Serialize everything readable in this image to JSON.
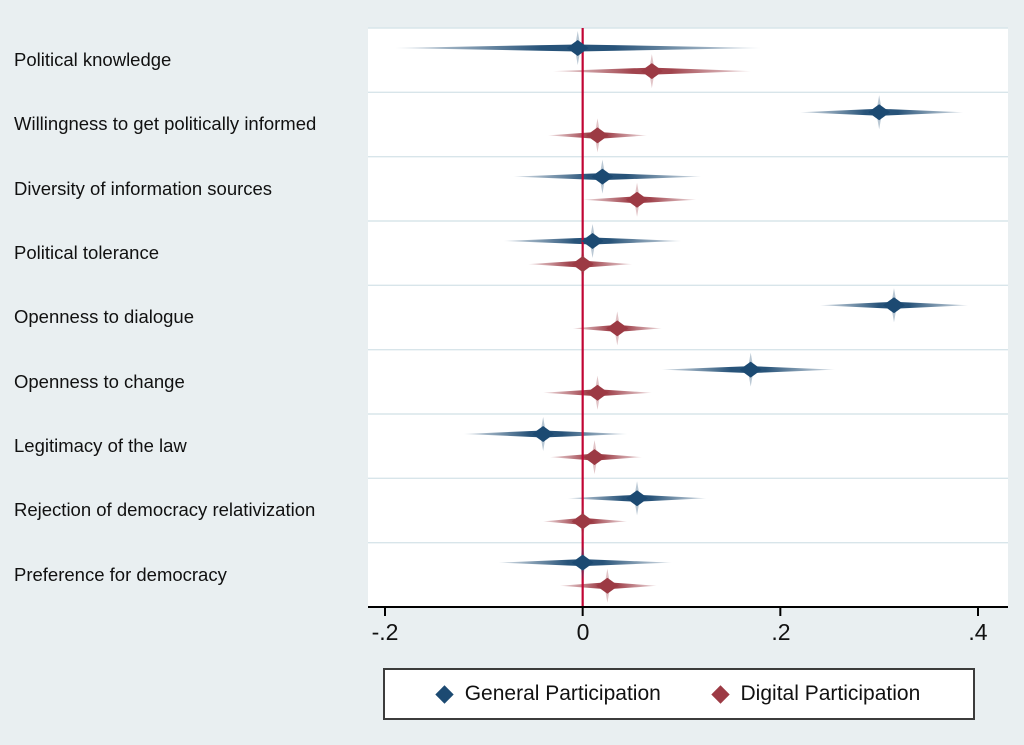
{
  "figure": {
    "background_color": "#e9eff1",
    "plot_background": "#ffffff",
    "gridline_color": "#d8e5ea",
    "axis_color": "#000000",
    "zero_line_color": "#c10534"
  },
  "legend": {
    "items": [
      {
        "label": "General Participation",
        "color": "#1c4a72",
        "marker": "diamond-icon"
      },
      {
        "label": "Digital Participation",
        "color": "#9c3a44",
        "marker": "diamond-icon"
      }
    ]
  },
  "chart_data": {
    "type": "scatter",
    "subtype": "coefficient-forest-plot",
    "title": "",
    "xlabel": "",
    "ylabel": "",
    "xlim": [
      -0.215,
      0.43
    ],
    "x_ticks": [
      -0.2,
      0,
      0.2,
      0.4
    ],
    "x_tick_labels": [
      "-.2",
      "0",
      ".2",
      ".4"
    ],
    "zero_line": 0,
    "grid": "horizontal band separators",
    "legend_position": "bottom",
    "categories": [
      "Political knowledge",
      "Willingness to get politically informed",
      "Diversity of information sources",
      "Political tolerance",
      "Openness to dialogue",
      "Openness to change",
      "Legitimacy of the law",
      "Rejection of democracy relativization",
      "Preference for democracy"
    ],
    "series": [
      {
        "name": "General Participation",
        "color": "#1c4a72",
        "points": [
          {
            "category": "Political knowledge",
            "estimate": -0.005,
            "ci_low": -0.19,
            "ci_high": 0.18
          },
          {
            "category": "Willingness to get politically informed",
            "estimate": 0.3,
            "ci_low": 0.22,
            "ci_high": 0.385
          },
          {
            "category": "Diversity of information sources",
            "estimate": 0.02,
            "ci_low": -0.07,
            "ci_high": 0.12
          },
          {
            "category": "Political tolerance",
            "estimate": 0.01,
            "ci_low": -0.08,
            "ci_high": 0.1
          },
          {
            "category": "Openness to dialogue",
            "estimate": 0.315,
            "ci_low": 0.24,
            "ci_high": 0.39
          },
          {
            "category": "Openness to change",
            "estimate": 0.17,
            "ci_low": 0.08,
            "ci_high": 0.255
          },
          {
            "category": "Legitimacy of the law",
            "estimate": -0.04,
            "ci_low": -0.12,
            "ci_high": 0.045
          },
          {
            "category": "Rejection of democracy relativization",
            "estimate": 0.055,
            "ci_low": -0.015,
            "ci_high": 0.125
          },
          {
            "category": "Preference for democracy",
            "estimate": 0.0,
            "ci_low": -0.085,
            "ci_high": 0.09
          }
        ]
      },
      {
        "name": "Digital Participation",
        "color": "#9c3a44",
        "points": [
          {
            "category": "Political knowledge",
            "estimate": 0.07,
            "ci_low": -0.03,
            "ci_high": 0.17
          },
          {
            "category": "Willingness to get politically informed",
            "estimate": 0.015,
            "ci_low": -0.035,
            "ci_high": 0.065
          },
          {
            "category": "Diversity of information sources",
            "estimate": 0.055,
            "ci_low": 0.0,
            "ci_high": 0.115
          },
          {
            "category": "Political tolerance",
            "estimate": 0.0,
            "ci_low": -0.055,
            "ci_high": 0.05
          },
          {
            "category": "Openness to dialogue",
            "estimate": 0.035,
            "ci_low": -0.01,
            "ci_high": 0.08
          },
          {
            "category": "Openness to change",
            "estimate": 0.015,
            "ci_low": -0.04,
            "ci_high": 0.07
          },
          {
            "category": "Legitimacy of the law",
            "estimate": 0.012,
            "ci_low": -0.033,
            "ci_high": 0.06
          },
          {
            "category": "Rejection of democracy relativization",
            "estimate": 0.0,
            "ci_low": -0.04,
            "ci_high": 0.045
          },
          {
            "category": "Preference for democracy",
            "estimate": 0.025,
            "ci_low": -0.023,
            "ci_high": 0.075
          }
        ]
      }
    ]
  }
}
